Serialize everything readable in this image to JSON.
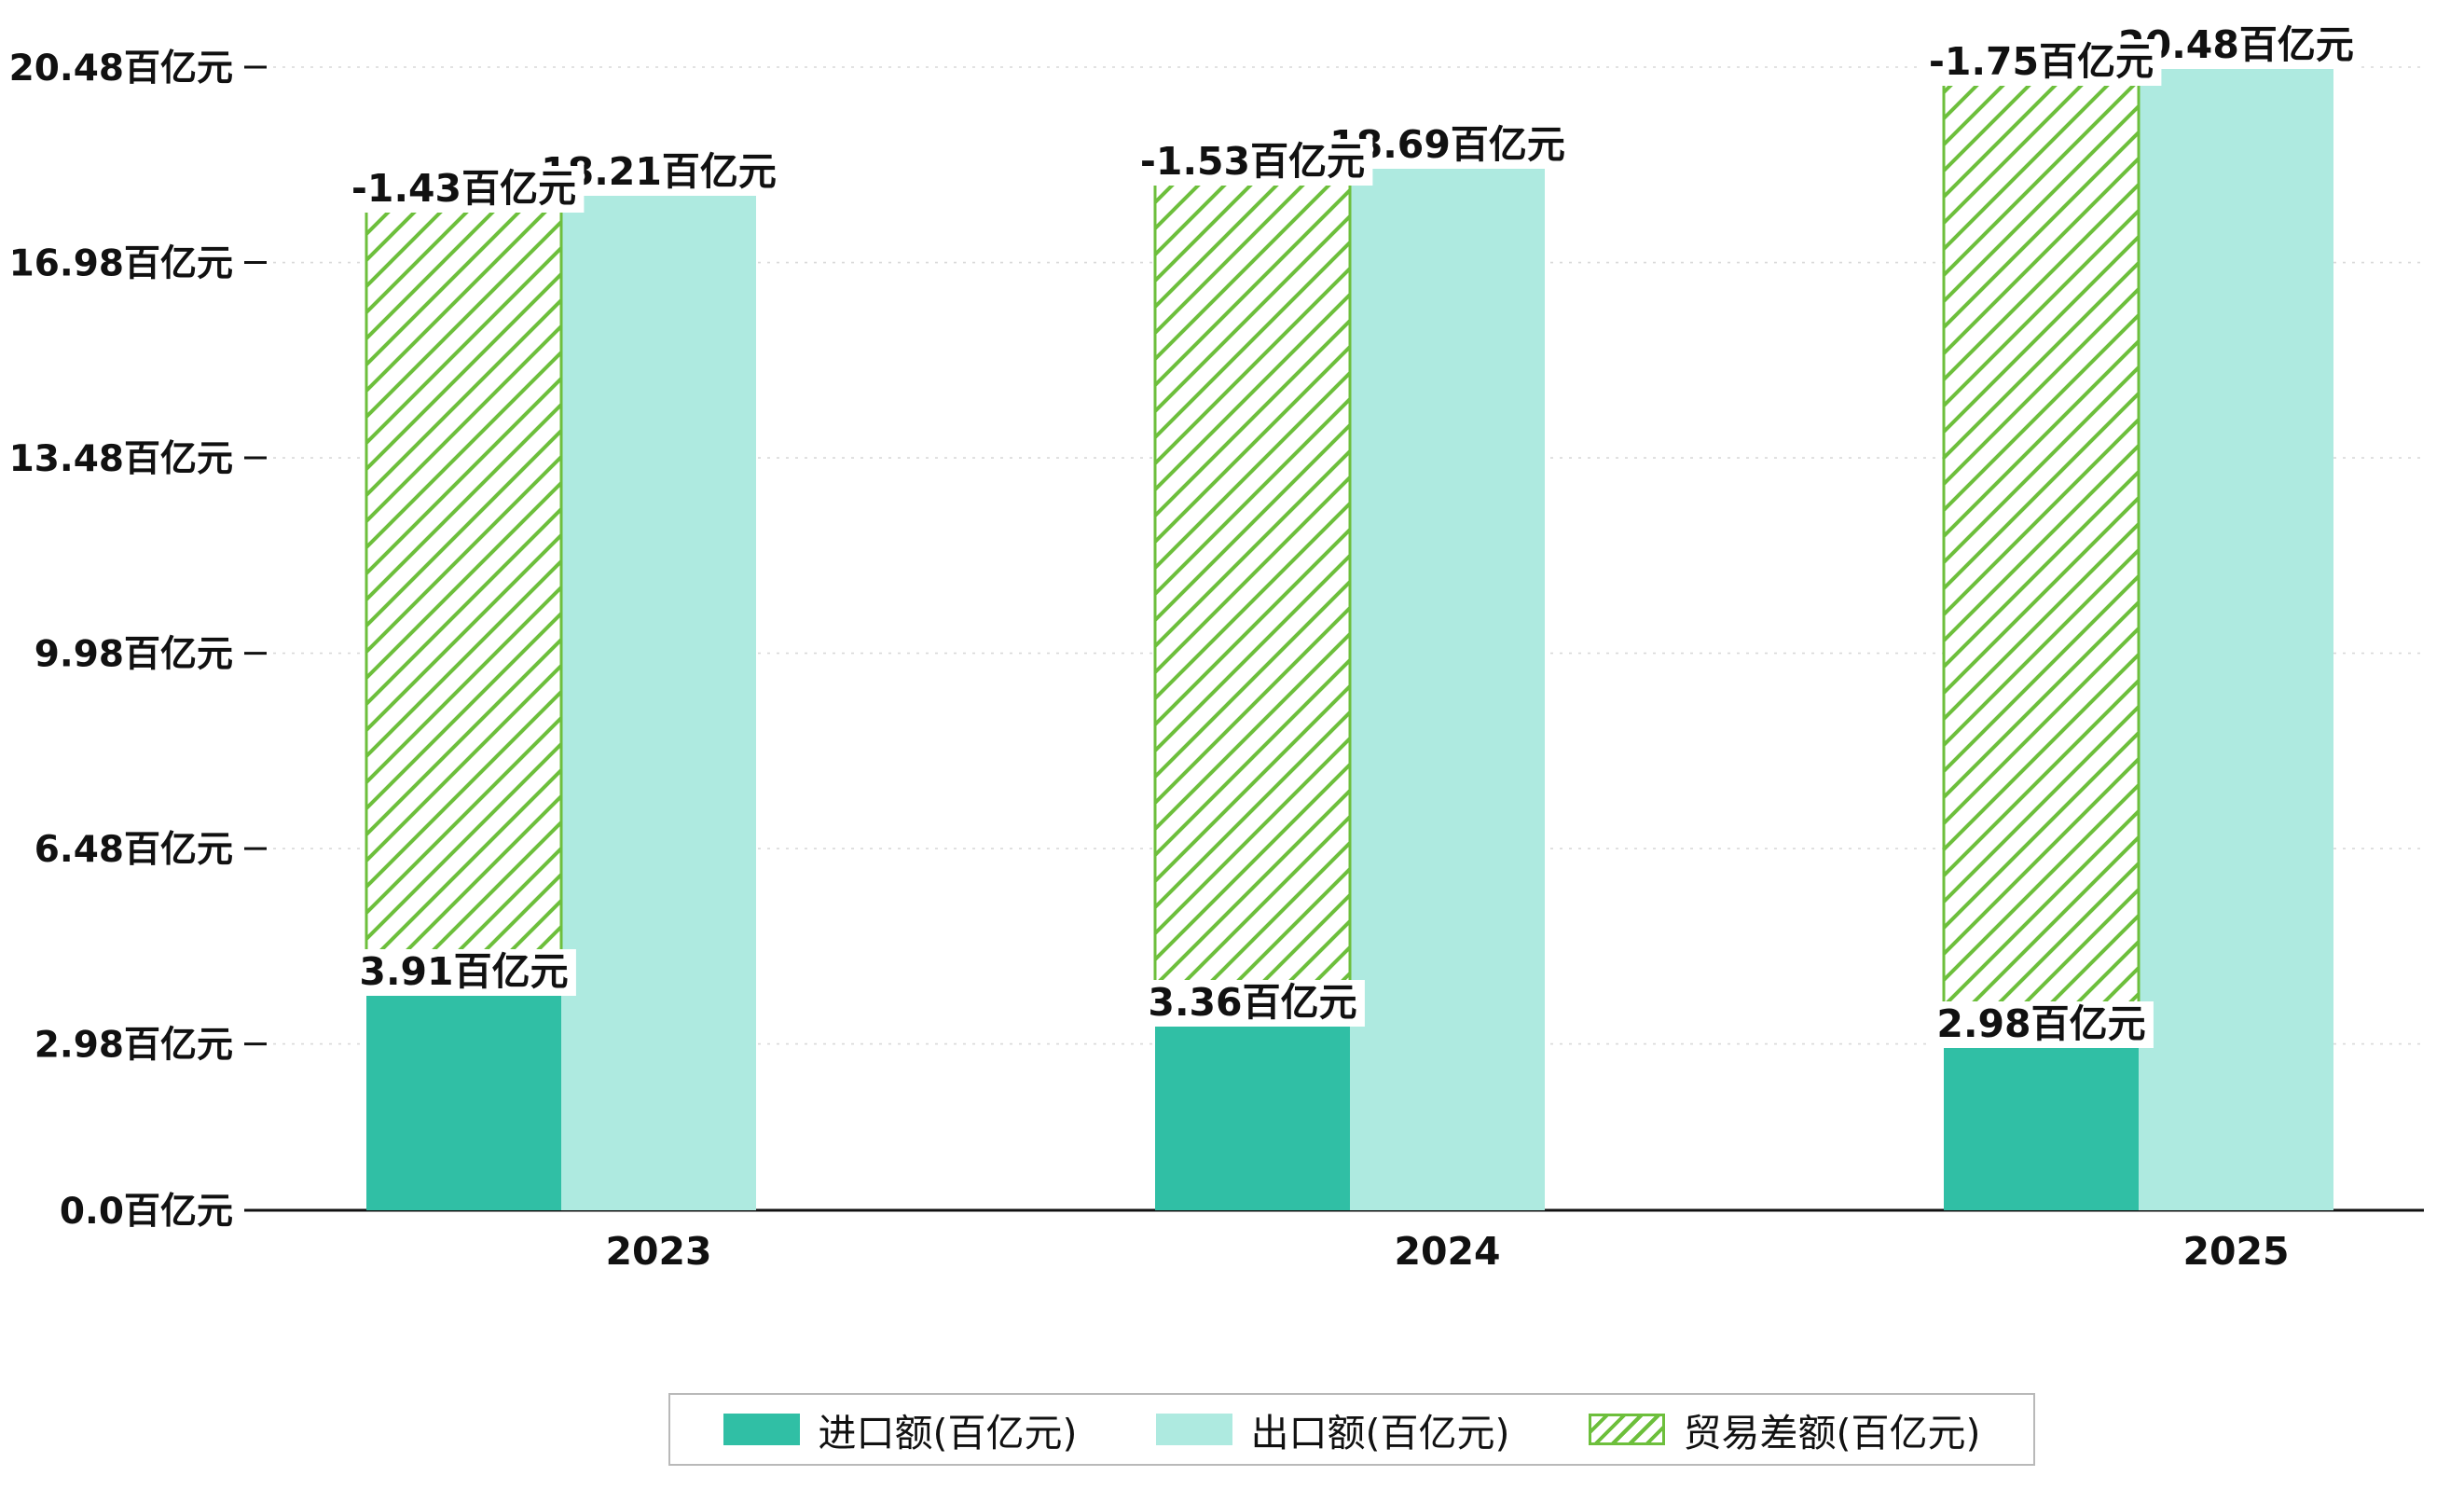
{
  "chart_data": {
    "type": "bar",
    "categories": [
      "2023",
      "2024",
      "2025"
    ],
    "series": [
      {
        "name": "进口额(百亿元)",
        "role": "import",
        "color": "#30bfa5",
        "values": [
          3.91,
          3.36,
          2.98
        ],
        "data_labels": [
          "3.91百亿元",
          "3.36百亿元",
          "2.98百亿元"
        ]
      },
      {
        "name": "出口额(百亿元)",
        "role": "export",
        "color": "#aeeae0",
        "values": [
          18.21,
          18.69,
          20.48
        ],
        "data_labels": [
          "18.21百亿元",
          "18.69百亿元",
          "20.48百亿元"
        ]
      },
      {
        "name": "贸易差额(百亿元)",
        "role": "trade-balance",
        "style": "hatched",
        "color": "#6dbf3c",
        "values": [
          -1.43,
          -1.53,
          -1.75
        ],
        "data_labels": [
          "-1.43百亿元",
          "-1.53百亿元",
          "-1.75百亿元"
        ]
      }
    ],
    "ylim": [
      0,
      20.48
    ],
    "yticks": [
      0.0,
      2.98,
      6.48,
      9.98,
      13.48,
      16.98,
      20.48
    ],
    "ytick_labels": [
      "0.0百亿元",
      "2.98百亿元",
      "6.48百亿元",
      "9.98百亿元",
      "13.48百亿元",
      "16.98百亿元",
      "20.48百亿元"
    ],
    "unit": "百亿元",
    "grid": true,
    "legend_position": "bottom"
  }
}
